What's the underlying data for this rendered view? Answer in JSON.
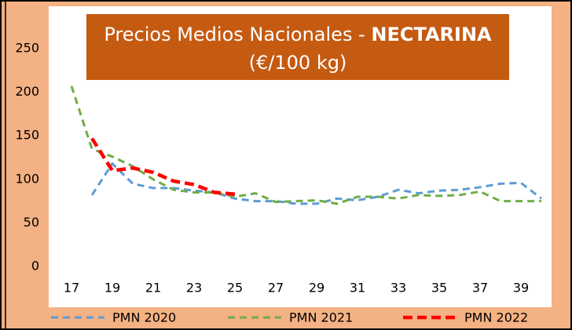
{
  "chart_data": {
    "type": "line",
    "title": [
      "Precios Medios Nacionales - ",
      "NECTARINA"
    ],
    "subtitle": "(€/100 kg)",
    "categories": [
      "17",
      null,
      "19",
      null,
      "21",
      null,
      "23",
      null,
      "25",
      null,
      "27",
      null,
      "29",
      null,
      "31",
      null,
      "33",
      null,
      "35",
      null,
      "37",
      null,
      "39",
      null
    ],
    "series": [
      {
        "name": "PMN 2020",
        "color": "#5b9bd5",
        "values": [
          null,
          82,
          118,
          95,
          90,
          90,
          87,
          85,
          78,
          75,
          75,
          72,
          72,
          78,
          76,
          80,
          88,
          84,
          87,
          88,
          91,
          95,
          96,
          78
        ]
      },
      {
        "name": "PMN 2021",
        "color": "#70ad47",
        "values": [
          207,
          135,
          126,
          115,
          100,
          88,
          85,
          85,
          80,
          84,
          74,
          75,
          76,
          72,
          80,
          80,
          78,
          82,
          81,
          82,
          86,
          75,
          75,
          75
        ]
      },
      {
        "name": "PMN 2022",
        "color": "#ff0000",
        "values": [
          null,
          147,
          110,
          113,
          108,
          98,
          94,
          85,
          83,
          null,
          null,
          null,
          null,
          null,
          null,
          null,
          null,
          null,
          null,
          null,
          null,
          null,
          null,
          null
        ]
      }
    ],
    "ylim": [
      0,
      250
    ],
    "yticks": [
      0,
      50,
      100,
      150,
      200,
      250
    ],
    "legend": "bottom"
  }
}
